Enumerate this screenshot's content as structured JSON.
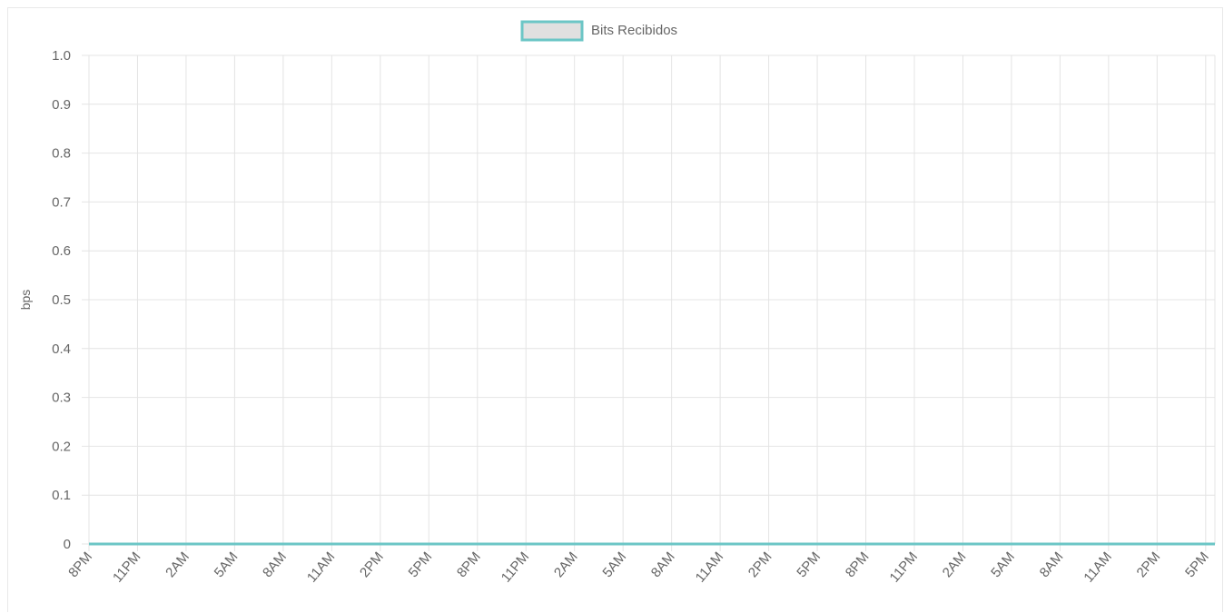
{
  "chart_data": {
    "type": "line",
    "legend": {
      "label": "Bits Recibidos",
      "placement": "top-center"
    },
    "ylabel": "bps",
    "xlabel": "",
    "ylim": [
      0,
      1.0
    ],
    "y_ticks": [
      "0",
      "0.1",
      "0.2",
      "0.3",
      "0.4",
      "0.5",
      "0.6",
      "0.7",
      "0.8",
      "0.9",
      "1.0"
    ],
    "grid": true,
    "categories": [
      "8PM",
      "11PM",
      "2AM",
      "5AM",
      "8AM",
      "11AM",
      "2PM",
      "5PM",
      "8PM",
      "11PM",
      "2AM",
      "5AM",
      "8AM",
      "11AM",
      "2PM",
      "5PM",
      "8PM",
      "11PM",
      "2AM",
      "5AM",
      "8AM",
      "11AM",
      "2PM",
      "5PM"
    ],
    "series": [
      {
        "name": "Bits Recibidos",
        "values": [
          0,
          0,
          0,
          0,
          0,
          0,
          0,
          0,
          0,
          0,
          0,
          0,
          0,
          0,
          0,
          0,
          0,
          0,
          0,
          0,
          0,
          0,
          0,
          0
        ],
        "color": "#6cc6c6",
        "fill": "#e0e0e0"
      }
    ]
  }
}
